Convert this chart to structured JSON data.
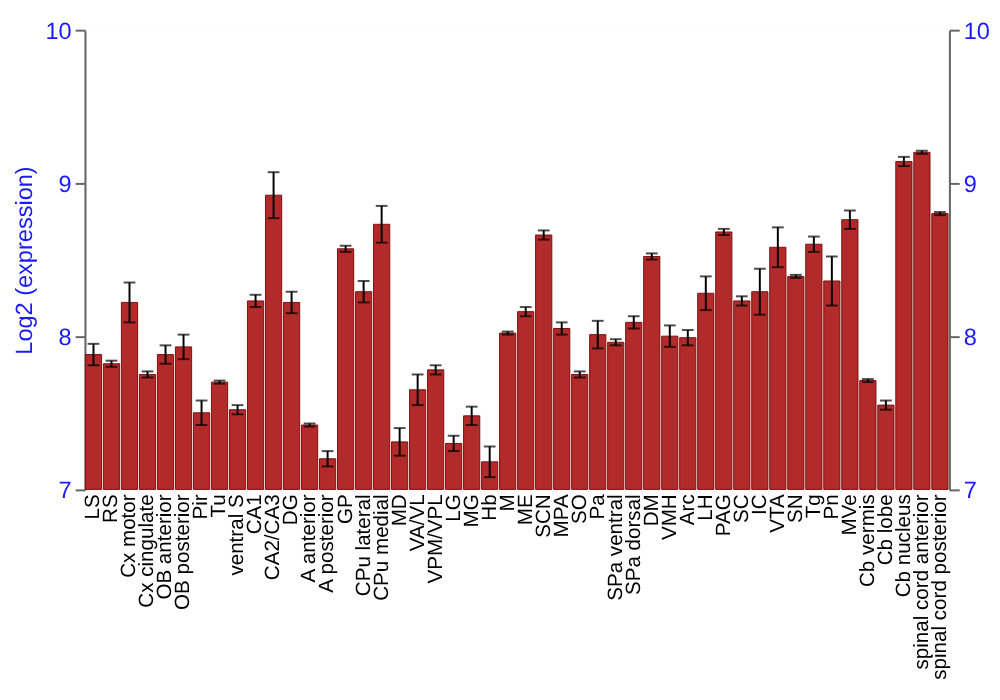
{
  "chart_data": {
    "type": "bar",
    "ylabel": "Log2 (expression)",
    "categories": [
      "LS",
      "RS",
      "Cx motor",
      "Cx cingulate",
      "OB anterior",
      "OB posterior",
      "Pir",
      "Tu",
      "ventral S",
      "CA1",
      "CA2/CA3",
      "DG",
      "A anterior",
      "A posterior",
      "GP",
      "CPu lateral",
      "CPu medial",
      "MD",
      "VA/VL",
      "VPM/VPL",
      "LG",
      "MG",
      "Hb",
      "M",
      "ME",
      "SCN",
      "MPA",
      "SO",
      "Pa",
      "SPa ventral",
      "SPa dorsal",
      "DM",
      "VMH",
      "Arc",
      "LH",
      "PAG",
      "SC",
      "IC",
      "VTA",
      "SN",
      "Tg",
      "Pn",
      "MVe",
      "Cb vermis",
      "Cb lobe",
      "Cb nucleus",
      "spinal cord anterior",
      "spinal cord posterior"
    ],
    "values": [
      7.88,
      7.82,
      8.22,
      7.75,
      7.88,
      7.93,
      7.5,
      7.7,
      7.52,
      8.23,
      8.92,
      8.22,
      7.42,
      7.2,
      8.57,
      8.29,
      8.73,
      7.31,
      7.65,
      7.78,
      7.3,
      7.48,
      7.18,
      8.02,
      8.16,
      8.66,
      8.05,
      7.75,
      8.01,
      7.96,
      8.09,
      8.52,
      8.0,
      7.99,
      8.28,
      8.68,
      8.23,
      8.29,
      8.58,
      8.39,
      8.6,
      8.36,
      8.76,
      7.71,
      7.55,
      9.14,
      9.2,
      8.8
    ],
    "errors": [
      0.07,
      0.02,
      0.13,
      0.02,
      0.06,
      0.08,
      0.08,
      0.01,
      0.03,
      0.04,
      0.15,
      0.07,
      0.01,
      0.05,
      0.02,
      0.07,
      0.12,
      0.09,
      0.1,
      0.03,
      0.05,
      0.06,
      0.1,
      0.01,
      0.03,
      0.03,
      0.04,
      0.02,
      0.09,
      0.02,
      0.04,
      0.02,
      0.07,
      0.05,
      0.11,
      0.02,
      0.03,
      0.15,
      0.13,
      0.01,
      0.05,
      0.16,
      0.06,
      0.01,
      0.03,
      0.03,
      0.01,
      0.01
    ],
    "color": "#b22a2a",
    "ylim": [
      7,
      10
    ],
    "yticks": [
      7,
      8,
      9,
      10
    ],
    "y2lim": [
      7,
      10
    ],
    "y2ticks": [
      7,
      8,
      9,
      10
    ],
    "grid": "y"
  }
}
